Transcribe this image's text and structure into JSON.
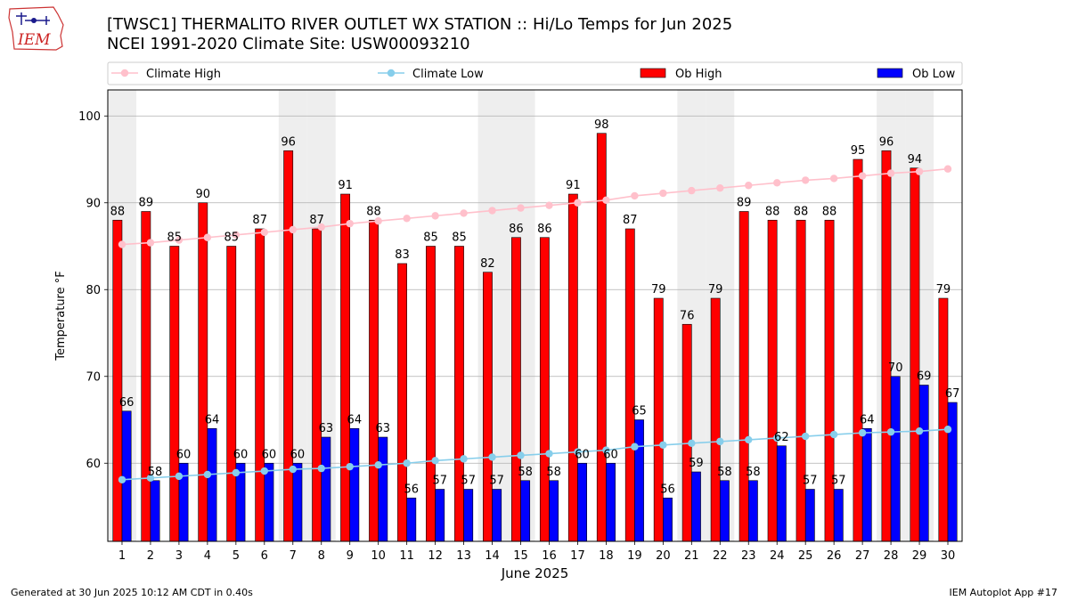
{
  "header": {
    "logo_text": "IEM",
    "title_line1": "[TWSC1] THERMALITO RIVER OUTLET WX STATION :: Hi/Lo Temps for Jun 2025",
    "title_line2": "NCEI 1991-2020 Climate Site: USW00093210"
  },
  "footer": {
    "left": "Generated at 30 Jun 2025 10:12 AM CDT in 0.40s",
    "right": "IEM Autoplot App #17"
  },
  "colors": {
    "ob_high": "#ff0000",
    "ob_low": "#0000ff",
    "climate_high": "#ffc0cb",
    "climate_low": "#87ceeb",
    "weekend_shade": "#eeeeee",
    "grid": "#b0b0b0"
  },
  "chart_data": {
    "type": "bar",
    "xlabel": "June 2025",
    "ylabel": "Temperature °F",
    "ylim": [
      51,
      103
    ],
    "yticks": [
      60,
      70,
      80,
      90,
      100
    ],
    "grid": true,
    "legend_position": "top",
    "categories": [
      "1",
      "2",
      "3",
      "4",
      "5",
      "6",
      "7",
      "8",
      "9",
      "10",
      "11",
      "12",
      "13",
      "14",
      "15",
      "16",
      "17",
      "18",
      "19",
      "20",
      "21",
      "22",
      "23",
      "24",
      "25",
      "26",
      "27",
      "28",
      "29",
      "30"
    ],
    "shaded_days": [
      1,
      7,
      8,
      14,
      15,
      21,
      22,
      28,
      29
    ],
    "series": [
      {
        "name": "Ob High",
        "kind": "bar",
        "values": [
          88,
          89,
          85,
          90,
          85,
          87,
          96,
          87,
          91,
          88,
          83,
          85,
          85,
          82,
          86,
          86,
          91,
          98,
          87,
          79,
          76,
          79,
          89,
          88,
          88,
          88,
          95,
          96,
          94,
          79
        ]
      },
      {
        "name": "Ob Low",
        "kind": "bar",
        "values": [
          66,
          58,
          60,
          64,
          60,
          60,
          60,
          63,
          64,
          63,
          56,
          57,
          57,
          57,
          58,
          58,
          60,
          60,
          65,
          56,
          59,
          58,
          58,
          62,
          57,
          57,
          64,
          70,
          69,
          67
        ]
      },
      {
        "name": "Climate High",
        "kind": "line",
        "values": [
          85.2,
          85.4,
          85.7,
          86.0,
          86.3,
          86.6,
          86.9,
          87.2,
          87.6,
          87.9,
          88.2,
          88.5,
          88.8,
          89.1,
          89.4,
          89.7,
          90.0,
          90.3,
          90.8,
          91.1,
          91.4,
          91.7,
          92.0,
          92.3,
          92.6,
          92.8,
          93.1,
          93.4,
          93.6,
          93.9
        ]
      },
      {
        "name": "Climate Low",
        "kind": "line",
        "values": [
          58.1,
          58.3,
          58.5,
          58.7,
          58.9,
          59.1,
          59.3,
          59.4,
          59.6,
          59.8,
          60.0,
          60.3,
          60.5,
          60.7,
          60.9,
          61.1,
          61.3,
          61.5,
          61.9,
          62.1,
          62.3,
          62.5,
          62.7,
          62.9,
          63.1,
          63.3,
          63.5,
          63.6,
          63.7,
          63.9
        ]
      }
    ]
  }
}
